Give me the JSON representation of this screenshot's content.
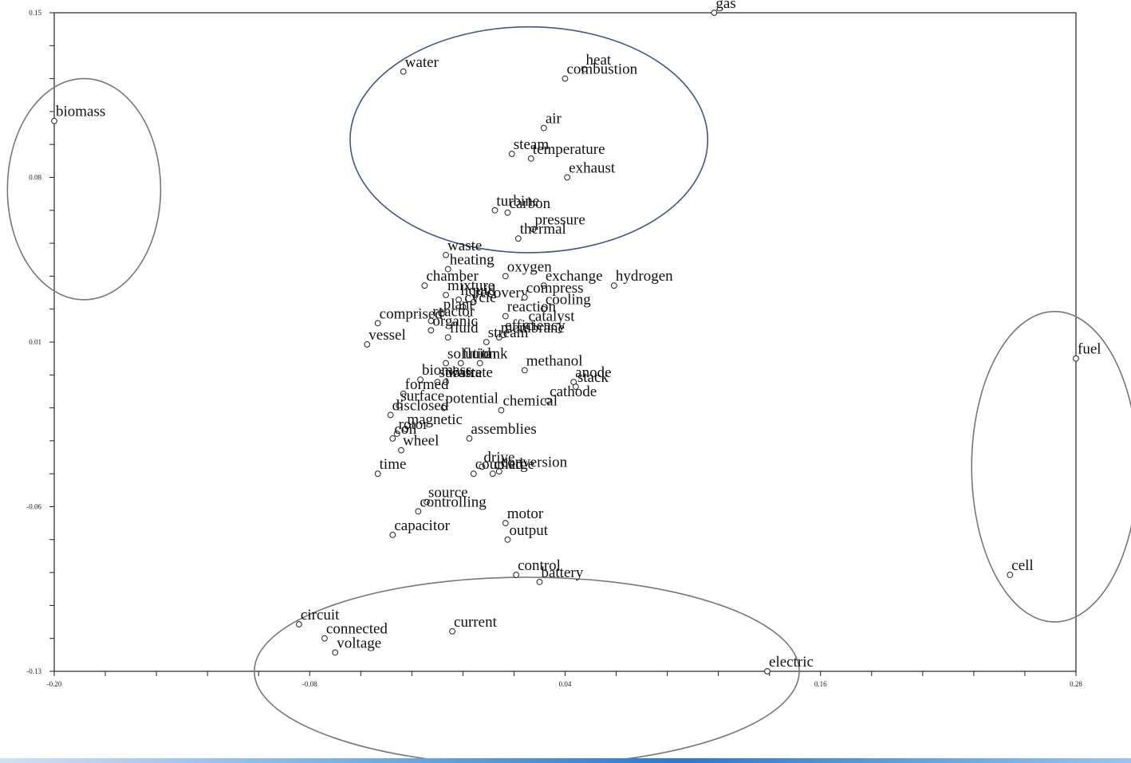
{
  "chart_data": {
    "type": "scatter",
    "title": "",
    "xlabel": "",
    "ylabel": "",
    "xlim": [
      -0.2,
      0.28
    ],
    "ylim": [
      -0.13,
      0.15
    ],
    "xticks": [
      "-0.20",
      "-0.08",
      "0.04",
      "0.16",
      "0.28"
    ],
    "yticks": [
      "0.15",
      "0.08",
      "0.01",
      "-0.06",
      "-0.13"
    ],
    "grid": false,
    "points": [
      {
        "label": "gas",
        "x": 0.11,
        "y": 0.15
      },
      {
        "label": "water",
        "x": -0.036,
        "y": 0.125
      },
      {
        "label": "heat",
        "x": 0.049,
        "y": 0.126
      },
      {
        "label": "combustion",
        "x": 0.04,
        "y": 0.122
      },
      {
        "label": "biomass",
        "x": -0.2,
        "y": 0.104
      },
      {
        "label": "air",
        "x": 0.03,
        "y": 0.101
      },
      {
        "label": "steam",
        "x": 0.015,
        "y": 0.09
      },
      {
        "label": "temperature",
        "x": 0.024,
        "y": 0.088
      },
      {
        "label": "exhaust",
        "x": 0.041,
        "y": 0.08
      },
      {
        "label": "turbine",
        "x": 0.007,
        "y": 0.066
      },
      {
        "label": "carbon",
        "x": 0.013,
        "y": 0.065
      },
      {
        "label": "pressure",
        "x": 0.025,
        "y": 0.058
      },
      {
        "label": "thermal",
        "x": 0.018,
        "y": 0.054
      },
      {
        "label": "waste",
        "x": -0.016,
        "y": 0.047
      },
      {
        "label": "heating",
        "x": -0.015,
        "y": 0.041
      },
      {
        "label": "oxygen",
        "x": 0.012,
        "y": 0.038
      },
      {
        "label": "chamber",
        "x": -0.026,
        "y": 0.034
      },
      {
        "label": "exchange",
        "x": 0.03,
        "y": 0.034
      },
      {
        "label": "hydrogen",
        "x": 0.063,
        "y": 0.034
      },
      {
        "label": "mixture",
        "x": -0.016,
        "y": 0.03
      },
      {
        "label": "liquid",
        "x": -0.01,
        "y": 0.028
      },
      {
        "label": "recovery",
        "x": -0.003,
        "y": 0.027
      },
      {
        "label": "compress",
        "x": 0.021,
        "y": 0.029
      },
      {
        "label": "cycle",
        "x": -0.008,
        "y": 0.025
      },
      {
        "label": "cooling",
        "x": 0.03,
        "y": 0.024
      },
      {
        "label": "reaction",
        "x": 0.012,
        "y": 0.021
      },
      {
        "label": "plant",
        "x": -0.018,
        "y": 0.022
      },
      {
        "label": "reactor",
        "x": -0.023,
        "y": 0.019
      },
      {
        "label": "catalyst",
        "x": 0.022,
        "y": 0.017
      },
      {
        "label": "comprised",
        "x": -0.048,
        "y": 0.018
      },
      {
        "label": "organic",
        "x": -0.023,
        "y": 0.015
      },
      {
        "label": "efficiency",
        "x": 0.011,
        "y": 0.013
      },
      {
        "label": "fluid",
        "x": -0.015,
        "y": 0.012
      },
      {
        "label": "membrane",
        "x": 0.009,
        "y": 0.012
      },
      {
        "label": "stream",
        "x": 0.003,
        "y": 0.01
      },
      {
        "label": "vessel",
        "x": -0.053,
        "y": 0.009
      },
      {
        "label": "methanol",
        "x": 0.021,
        "y": -0.002
      },
      {
        "label": "tank",
        "x": 0.0,
        "y": 0.001
      },
      {
        "label": "fluid",
        "x": -0.009,
        "y": 0.001
      },
      {
        "label": "solution",
        "x": -0.016,
        "y": 0.001
      },
      {
        "label": "anode",
        "x": 0.044,
        "y": -0.007
      },
      {
        "label": "stack",
        "x": 0.045,
        "y": -0.009
      },
      {
        "label": "biomass",
        "x": -0.028,
        "y": -0.006
      },
      {
        "label": "substrate",
        "x": -0.02,
        "y": -0.007
      },
      {
        "label": "waste",
        "x": -0.016,
        "y": -0.007
      },
      {
        "label": "formed",
        "x": -0.036,
        "y": -0.012
      },
      {
        "label": "cathode",
        "x": 0.032,
        "y": -0.015
      },
      {
        "label": "surface",
        "x": -0.038,
        "y": -0.017
      },
      {
        "label": "potential",
        "x": -0.017,
        "y": -0.018
      },
      {
        "label": "chemical",
        "x": 0.01,
        "y": -0.019
      },
      {
        "label": "disclosed",
        "x": -0.042,
        "y": -0.021
      },
      {
        "label": "magnetic",
        "x": -0.035,
        "y": -0.027
      },
      {
        "label": "rotor",
        "x": -0.039,
        "y": -0.029
      },
      {
        "label": "coil",
        "x": -0.041,
        "y": -0.031
      },
      {
        "label": "assemblies",
        "x": -0.005,
        "y": -0.031
      },
      {
        "label": "wheel",
        "x": -0.037,
        "y": -0.036
      },
      {
        "label": "time",
        "x": -0.048,
        "y": -0.046
      },
      {
        "label": "drive",
        "x": 0.001,
        "y": -0.043
      },
      {
        "label": "coupled",
        "x": -0.003,
        "y": -0.046
      },
      {
        "label": "charge",
        "x": 0.006,
        "y": -0.046
      },
      {
        "label": "conversion",
        "x": 0.009,
        "y": -0.045
      },
      {
        "label": "source",
        "x": -0.025,
        "y": -0.058
      },
      {
        "label": "controlling",
        "x": -0.029,
        "y": -0.062
      },
      {
        "label": "motor",
        "x": 0.012,
        "y": -0.067
      },
      {
        "label": "capacitor",
        "x": -0.041,
        "y": -0.072
      },
      {
        "label": "output",
        "x": 0.013,
        "y": -0.074
      },
      {
        "label": "control",
        "x": 0.017,
        "y": -0.089
      },
      {
        "label": "battery",
        "x": 0.028,
        "y": -0.092
      },
      {
        "label": "circuit",
        "x": -0.085,
        "y": -0.11
      },
      {
        "label": "current",
        "x": -0.013,
        "y": -0.113
      },
      {
        "label": "connected",
        "x": -0.073,
        "y": -0.116
      },
      {
        "label": "voltage",
        "x": -0.068,
        "y": -0.122
      },
      {
        "label": "electric",
        "x": 0.135,
        "y": -0.13
      },
      {
        "label": "fuel",
        "x": 0.28,
        "y": 0.003
      },
      {
        "label": "cell",
        "x": 0.249,
        "y": -0.089
      }
    ],
    "annotations": [
      {
        "shape": "ellipse",
        "color": "#777777",
        "cx": -0.186,
        "cy": 0.075,
        "rx": 0.036,
        "ry": 0.047
      },
      {
        "shape": "ellipse",
        "color": "#3b5a8a",
        "cx": 0.023,
        "cy": 0.096,
        "rx": 0.084,
        "ry": 0.048
      },
      {
        "shape": "ellipse",
        "color": "#777777",
        "cx": 0.022,
        "cy": -0.13,
        "rx": 0.128,
        "ry": 0.04
      },
      {
        "shape": "ellipse",
        "color": "#777777",
        "cx": 0.27,
        "cy": -0.043,
        "rx": 0.039,
        "ry": 0.066
      }
    ]
  }
}
